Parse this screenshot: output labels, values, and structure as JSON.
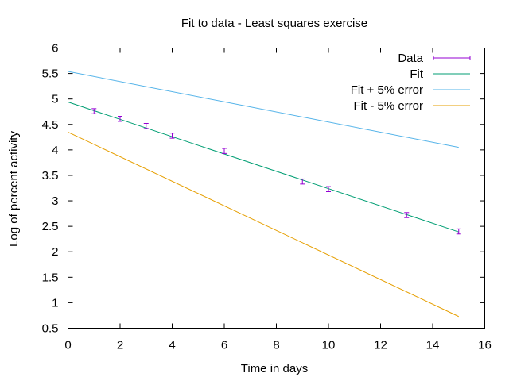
{
  "chart_data": {
    "type": "line",
    "title": "Fit to data - Least squares exercise",
    "xlabel": "Time in days",
    "ylabel": "Log of percent activity",
    "xlim": [
      0,
      16
    ],
    "ylim": [
      0.5,
      6
    ],
    "x_ticks": [
      0,
      2,
      4,
      6,
      8,
      10,
      12,
      14,
      16
    ],
    "y_ticks": [
      0.5,
      1,
      1.5,
      2,
      2.5,
      3,
      3.5,
      4,
      4.5,
      5,
      5.5,
      6
    ],
    "grid": false,
    "legend_position": "top-right",
    "data_points": {
      "name": "Data",
      "color": "#9400d3",
      "x": [
        1,
        2,
        3,
        4,
        6,
        9,
        10,
        13,
        15
      ],
      "y": [
        4.76,
        4.61,
        4.47,
        4.28,
        3.98,
        3.38,
        3.23,
        2.72,
        2.4
      ],
      "error": [
        0.05,
        0.05,
        0.05,
        0.05,
        0.05,
        0.05,
        0.05,
        0.05,
        0.05
      ]
    },
    "series": [
      {
        "name": "Fit",
        "color": "#009e73",
        "x": [
          0,
          15
        ],
        "y": [
          4.94,
          2.39
        ]
      },
      {
        "name": "Fit + 5% error",
        "color": "#56b4e9",
        "x": [
          0,
          15
        ],
        "y": [
          5.54,
          4.05
        ]
      },
      {
        "name": "Fit - 5% error",
        "color": "#e69f00",
        "x": [
          0,
          15
        ],
        "y": [
          4.35,
          0.73
        ]
      }
    ]
  }
}
